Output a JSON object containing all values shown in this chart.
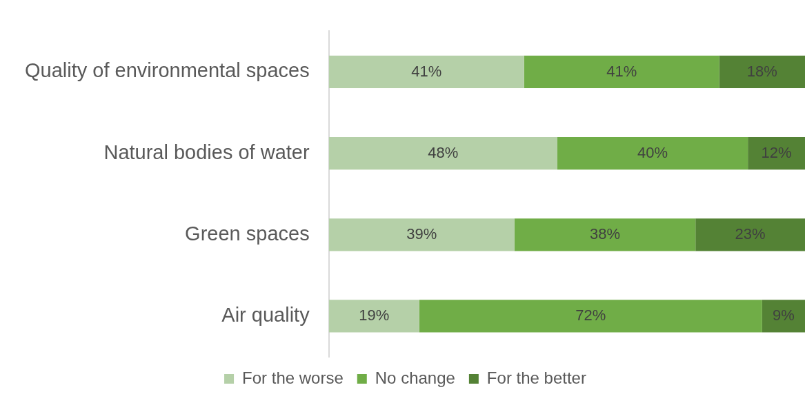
{
  "chart_data": {
    "type": "bar",
    "orientation": "horizontal",
    "stacked": true,
    "categories": [
      "Quality of environmental spaces",
      "Natural bodies of water",
      "Green spaces",
      "Air quality"
    ],
    "xlim": [
      0,
      100
    ],
    "tick_labels": "y",
    "grid": false,
    "legend": "bottom",
    "series": [
      {
        "name": "For the worse",
        "color": "#b5d0a8",
        "values": [
          41,
          48,
          39,
          19
        ],
        "value_labels": [
          "41%",
          "48%",
          "39%",
          "19%"
        ]
      },
      {
        "name": "No change",
        "color": "#70ad47",
        "values": [
          41,
          40,
          38,
          72
        ],
        "value_labels": [
          "41%",
          "40%",
          "38%",
          "72%"
        ]
      },
      {
        "name": "For the better",
        "color": "#548235",
        "values": [
          18,
          12,
          23,
          9
        ],
        "value_labels": [
          "18%",
          "12%",
          "23%",
          "9%"
        ]
      }
    ]
  }
}
